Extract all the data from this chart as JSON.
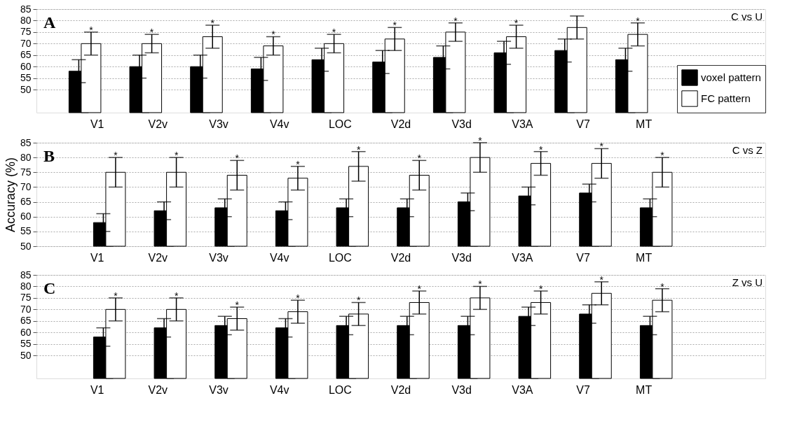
{
  "chart_data": [
    {
      "type": "bar",
      "categories": [
        "V1",
        "V2v",
        "V3v",
        "V4v",
        "LOC",
        "V2d",
        "V3d",
        "V3A",
        "V7",
        "MT"
      ],
      "ylim": [
        40,
        85
      ],
      "yticks": [
        50,
        55,
        60,
        65,
        70,
        75,
        80,
        85
      ],
      "grid": "y",
      "legend": "bottom right",
      "series": [
        {
          "name": "voxel pattern",
          "color": "#000000",
          "values": [
            58,
            60,
            60,
            59,
            63,
            62,
            64,
            66,
            67,
            63
          ],
          "errors": [
            5,
            5,
            5,
            5,
            5,
            5,
            5,
            5,
            5,
            5
          ]
        },
        {
          "name": "FC pattern",
          "color": "#ffffff",
          "values": [
            70,
            70,
            73,
            69,
            70,
            72,
            75,
            73,
            77,
            74
          ],
          "errors": [
            5,
            4,
            5,
            4,
            4,
            5,
            4,
            5,
            5,
            5
          ]
        }
      ],
      "annotations": [
        "A",
        "C vs U",
        {
          "text": "*",
          "x": "V1",
          "y": 75
        },
        {
          "text": "*",
          "x": "V2v",
          "y": 74
        },
        {
          "text": "*",
          "x": "V3v",
          "y": 78
        },
        {
          "text": "*",
          "x": "V4v",
          "y": 73
        },
        {
          "text": "*",
          "x": "LOC",
          "y": 74
        },
        {
          "text": "*",
          "x": "V2d",
          "y": 77
        },
        {
          "text": "*",
          "x": "V3d",
          "y": 79
        },
        {
          "text": "*",
          "x": "V3A",
          "y": 78
        },
        {
          "text": "*",
          "x": "MT",
          "y": 79
        }
      ]
    },
    {
      "type": "bar",
      "categories": [
        "V1",
        "V2v",
        "V3v",
        "V4v",
        "LOC",
        "V2d",
        "V3d",
        "V3A",
        "V7",
        "MT"
      ],
      "ylim": [
        50,
        85
      ],
      "yticks": [
        50,
        55,
        60,
        65,
        70,
        75,
        80,
        85
      ],
      "grid": "y",
      "ylabel": "Accuracy (%)",
      "series": [
        {
          "color": "#000000",
          "values": [
            58,
            62,
            63,
            62,
            63,
            63,
            65,
            67,
            68,
            63
          ],
          "errors": [
            3,
            3,
            3,
            3,
            3,
            3,
            3,
            3,
            3,
            3
          ]
        },
        {
          "color": "#ffffff",
          "values": [
            75,
            75,
            74,
            73,
            77,
            74,
            80,
            78,
            78,
            75
          ],
          "errors": [
            5,
            5,
            5,
            4,
            5,
            5,
            5,
            4,
            5,
            5
          ]
        }
      ],
      "annotations": [
        "B",
        "C vs Z",
        "*",
        "*",
        "*",
        "*",
        "*",
        "*",
        "*",
        "*",
        "*",
        "*"
      ]
    },
    {
      "type": "bar",
      "categories": [
        "V1",
        "V2v",
        "V3v",
        "V4v",
        "LOC",
        "V2d",
        "V3d",
        "V3A",
        "V7",
        "MT"
      ],
      "ylim": [
        40,
        85
      ],
      "yticks": [
        50,
        55,
        60,
        65,
        70,
        75,
        80,
        85
      ],
      "grid": "y",
      "series": [
        {
          "color": "#000000",
          "values": [
            58,
            62,
            63,
            62,
            63,
            63,
            63,
            67,
            68,
            63
          ],
          "errors": [
            4,
            4,
            4,
            4,
            4,
            4,
            4,
            4,
            4,
            4
          ]
        },
        {
          "color": "#ffffff",
          "values": [
            70,
            70,
            66,
            69,
            68,
            73,
            75,
            73,
            77,
            74
          ],
          "errors": [
            5,
            5,
            5,
            5,
            5,
            5,
            5,
            5,
            5,
            5
          ]
        }
      ],
      "annotations": [
        "C",
        "Z vs U",
        "*",
        "*",
        "*",
        "*",
        "*",
        "*",
        "*",
        "*",
        "*",
        "*"
      ]
    }
  ]
}
